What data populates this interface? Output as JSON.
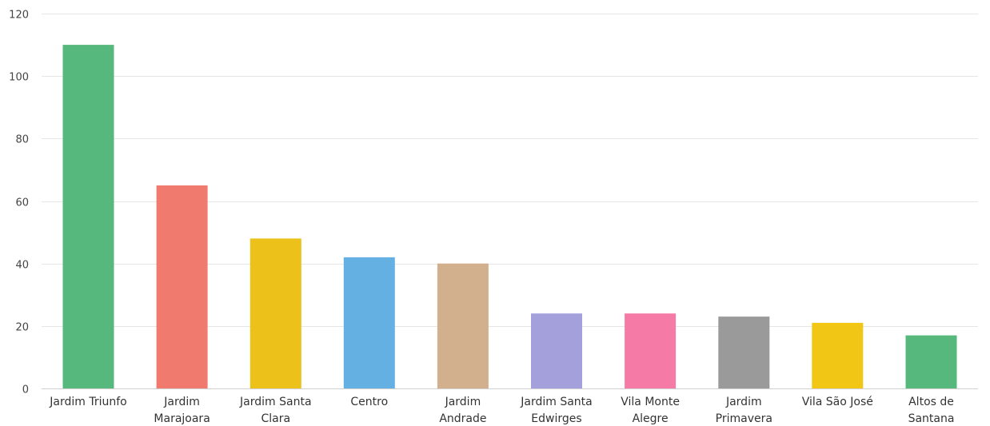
{
  "chart_data": {
    "type": "bar",
    "title": "",
    "xlabel": "",
    "ylabel": "",
    "ylim": [
      0,
      120
    ],
    "yticks": [
      0,
      20,
      40,
      60,
      80,
      100,
      120
    ],
    "grid": true,
    "legend": "none",
    "categories": [
      "Jardim Triunfo",
      "Jardim Marajoara",
      "Jardim Santa Clara",
      "Centro",
      "Jardim Andrade",
      "Jardim Santa Edwirges",
      "Vila Monte Alegre",
      "Jardim Primavera",
      "Vila São José",
      "Altos de Santana"
    ],
    "category_lines": [
      [
        "Jardim Triunfo"
      ],
      [
        "Jardim",
        "Marajoara"
      ],
      [
        "Jardim Santa",
        "Clara"
      ],
      [
        "Centro"
      ],
      [
        "Jardim",
        "Andrade"
      ],
      [
        "Jardim Santa",
        "Edwirges"
      ],
      [
        "Vila Monte",
        "Alegre"
      ],
      [
        "Jardim",
        "Primavera"
      ],
      [
        "Vila São José"
      ],
      [
        "Altos de",
        "Santana"
      ]
    ],
    "values": [
      110,
      65,
      48,
      42,
      40,
      24,
      24,
      23,
      21,
      17
    ],
    "colors": [
      "#56b87c",
      "#ef7a6d",
      "#ecc11a",
      "#65b0e3",
      "#d2b08e",
      "#a3a0dc",
      "#f57aa6",
      "#9a9a9a",
      "#f2c614",
      "#56b87c"
    ]
  }
}
